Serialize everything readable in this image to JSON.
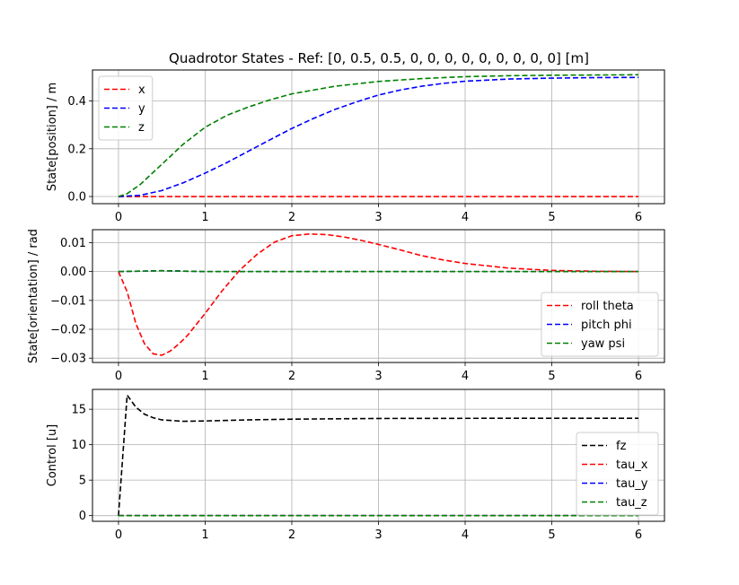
{
  "title": "Quadrotor States - Ref: [0, 0.5, 0.5, 0, 0, 0, 0, 0, 0, 0, 0, 0] [m]",
  "chart_data": [
    {
      "type": "line",
      "ylabel": "State[position] / m",
      "xlim": [
        -0.3,
        6.3
      ],
      "ylim": [
        -0.03,
        0.53
      ],
      "xticks": [
        0,
        1,
        2,
        3,
        4,
        5,
        6
      ],
      "yticks": [
        0.0,
        0.2,
        0.4
      ],
      "ytick_labels": [
        "0.0",
        "0.2",
        "0.4"
      ],
      "grid": true,
      "legend_position": "upper-left",
      "series": [
        {
          "name": "x",
          "color": "#ff0000",
          "x": [
            0,
            6
          ],
          "y": [
            0,
            0
          ]
        },
        {
          "name": "y",
          "color": "#0000ff",
          "x": [
            0,
            0.25,
            0.5,
            0.75,
            1.0,
            1.25,
            1.5,
            1.75,
            2.0,
            2.25,
            2.5,
            2.75,
            3.0,
            3.25,
            3.5,
            3.75,
            4.0,
            4.5,
            5.0,
            5.5,
            6.0
          ],
          "y": [
            0,
            0.005,
            0.025,
            0.058,
            0.098,
            0.142,
            0.19,
            0.238,
            0.285,
            0.327,
            0.365,
            0.397,
            0.425,
            0.446,
            0.462,
            0.474,
            0.483,
            0.492,
            0.496,
            0.498,
            0.499
          ]
        },
        {
          "name": "z",
          "color": "#008000",
          "x": [
            0,
            0.1,
            0.25,
            0.5,
            0.75,
            1.0,
            1.25,
            1.5,
            1.75,
            2.0,
            2.5,
            3.0,
            3.5,
            4.0,
            4.5,
            5.0,
            5.5,
            6.0
          ],
          "y": [
            0,
            0.012,
            0.05,
            0.135,
            0.22,
            0.29,
            0.34,
            0.375,
            0.405,
            0.43,
            0.462,
            0.482,
            0.494,
            0.502,
            0.506,
            0.508,
            0.509,
            0.51
          ]
        }
      ]
    },
    {
      "type": "line",
      "ylabel": "State[orientation] / rad",
      "xlim": [
        -0.3,
        6.3
      ],
      "ylim": [
        -0.0315,
        0.0145
      ],
      "xticks": [
        0,
        1,
        2,
        3,
        4,
        5,
        6
      ],
      "yticks": [
        0.01,
        0.0,
        -0.01,
        -0.02,
        -0.03
      ],
      "ytick_labels": [
        "0.01",
        "0.00",
        "−0.01",
        "−0.02",
        "−0.03"
      ],
      "grid": true,
      "legend_position": "lower-right",
      "series": [
        {
          "name": "roll theta",
          "color": "#ff0000",
          "x": [
            0,
            0.1,
            0.2,
            0.3,
            0.4,
            0.5,
            0.6,
            0.7,
            0.8,
            1.0,
            1.2,
            1.4,
            1.6,
            1.8,
            2.0,
            2.2,
            2.4,
            2.6,
            2.8,
            3.0,
            3.25,
            3.5,
            3.75,
            4.0,
            4.5,
            5.0,
            5.5,
            6.0
          ],
          "y": [
            0,
            -0.007,
            -0.018,
            -0.025,
            -0.0285,
            -0.029,
            -0.0275,
            -0.025,
            -0.022,
            -0.0145,
            -0.0065,
            0.0005,
            0.006,
            0.0102,
            0.0124,
            0.013,
            0.0128,
            0.012,
            0.0108,
            0.0094,
            0.0075,
            0.0055,
            0.004,
            0.0028,
            0.0012,
            0.0004,
            0.0001,
            0.0
          ]
        },
        {
          "name": "pitch phi",
          "color": "#0000ff",
          "x": [
            0,
            0.5,
            1.0,
            6.0
          ],
          "y": [
            0,
            0.0003,
            0.0,
            0.0
          ]
        },
        {
          "name": "yaw psi",
          "color": "#008000",
          "x": [
            0,
            0.5,
            1.0,
            6.0
          ],
          "y": [
            0,
            0.0003,
            0.0,
            0.0
          ]
        }
      ]
    },
    {
      "type": "line",
      "ylabel": "Control [u]",
      "xlim": [
        -0.3,
        6.3
      ],
      "ylim": [
        -0.8,
        17.8
      ],
      "xticks": [
        0,
        1,
        2,
        3,
        4,
        5,
        6
      ],
      "yticks": [
        0,
        5,
        10,
        15
      ],
      "ytick_labels": [
        "0",
        "5",
        "10",
        "15"
      ],
      "grid": true,
      "legend_position": "lower-right",
      "series": [
        {
          "name": "fz",
          "color": "#000000",
          "x": [
            0,
            0.1,
            0.2,
            0.3,
            0.4,
            0.5,
            0.75,
            1.0,
            1.5,
            2.0,
            3.0,
            4.0,
            5.0,
            6.0
          ],
          "y": [
            0,
            17.0,
            15.3,
            14.3,
            13.8,
            13.5,
            13.3,
            13.35,
            13.5,
            13.6,
            13.7,
            13.72,
            13.73,
            13.73
          ]
        },
        {
          "name": "tau_x",
          "color": "#ff0000",
          "x": [
            0,
            6
          ],
          "y": [
            0,
            0
          ]
        },
        {
          "name": "tau_y",
          "color": "#0000ff",
          "x": [
            0,
            6
          ],
          "y": [
            0,
            0
          ]
        },
        {
          "name": "tau_z",
          "color": "#008000",
          "x": [
            0,
            6
          ],
          "y": [
            0,
            0
          ]
        }
      ]
    }
  ]
}
